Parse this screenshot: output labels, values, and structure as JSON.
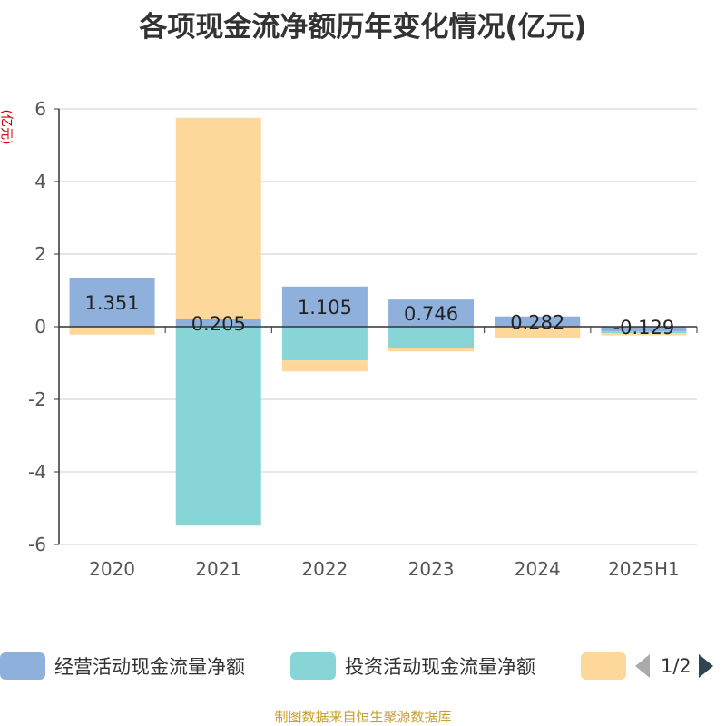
{
  "title": "各项现金流净额历年变化情况(亿元)",
  "source": "制图数据来自恒生聚源数据库",
  "pager": {
    "text": "1/2"
  },
  "chart_data": {
    "type": "bar",
    "stacked": true,
    "title": "各项现金流净额历年变化情况(亿元)",
    "ylabel": "(亿元)",
    "ylim": [
      -6,
      6
    ],
    "yticks": [
      6,
      4,
      2,
      0,
      -2,
      -4,
      -6
    ],
    "grid": true,
    "legend_position": "bottom",
    "categories": [
      "2020",
      "2021",
      "2022",
      "2023",
      "2024",
      "2025H1"
    ],
    "series": [
      {
        "name": "经营活动现金流量净额",
        "color": "#8eb0db",
        "values": [
          1.351,
          0.205,
          1.105,
          0.746,
          0.282,
          -0.129
        ],
        "show_labels": true
      },
      {
        "name": "投资活动现金流量净额",
        "color": "#88d5d8",
        "values": [
          0,
          -5.48,
          -0.93,
          -0.6,
          0,
          -0.05
        ],
        "show_labels": false
      },
      {
        "name": "",
        "color": "#fdd89a",
        "values": [
          -0.22,
          5.55,
          -0.3,
          -0.08,
          -0.3,
          -0.06
        ],
        "show_labels": false
      }
    ],
    "data_labels": [
      "1.351",
      "0.205",
      "1.105",
      "0.746",
      "0.282",
      "-0.129"
    ]
  }
}
